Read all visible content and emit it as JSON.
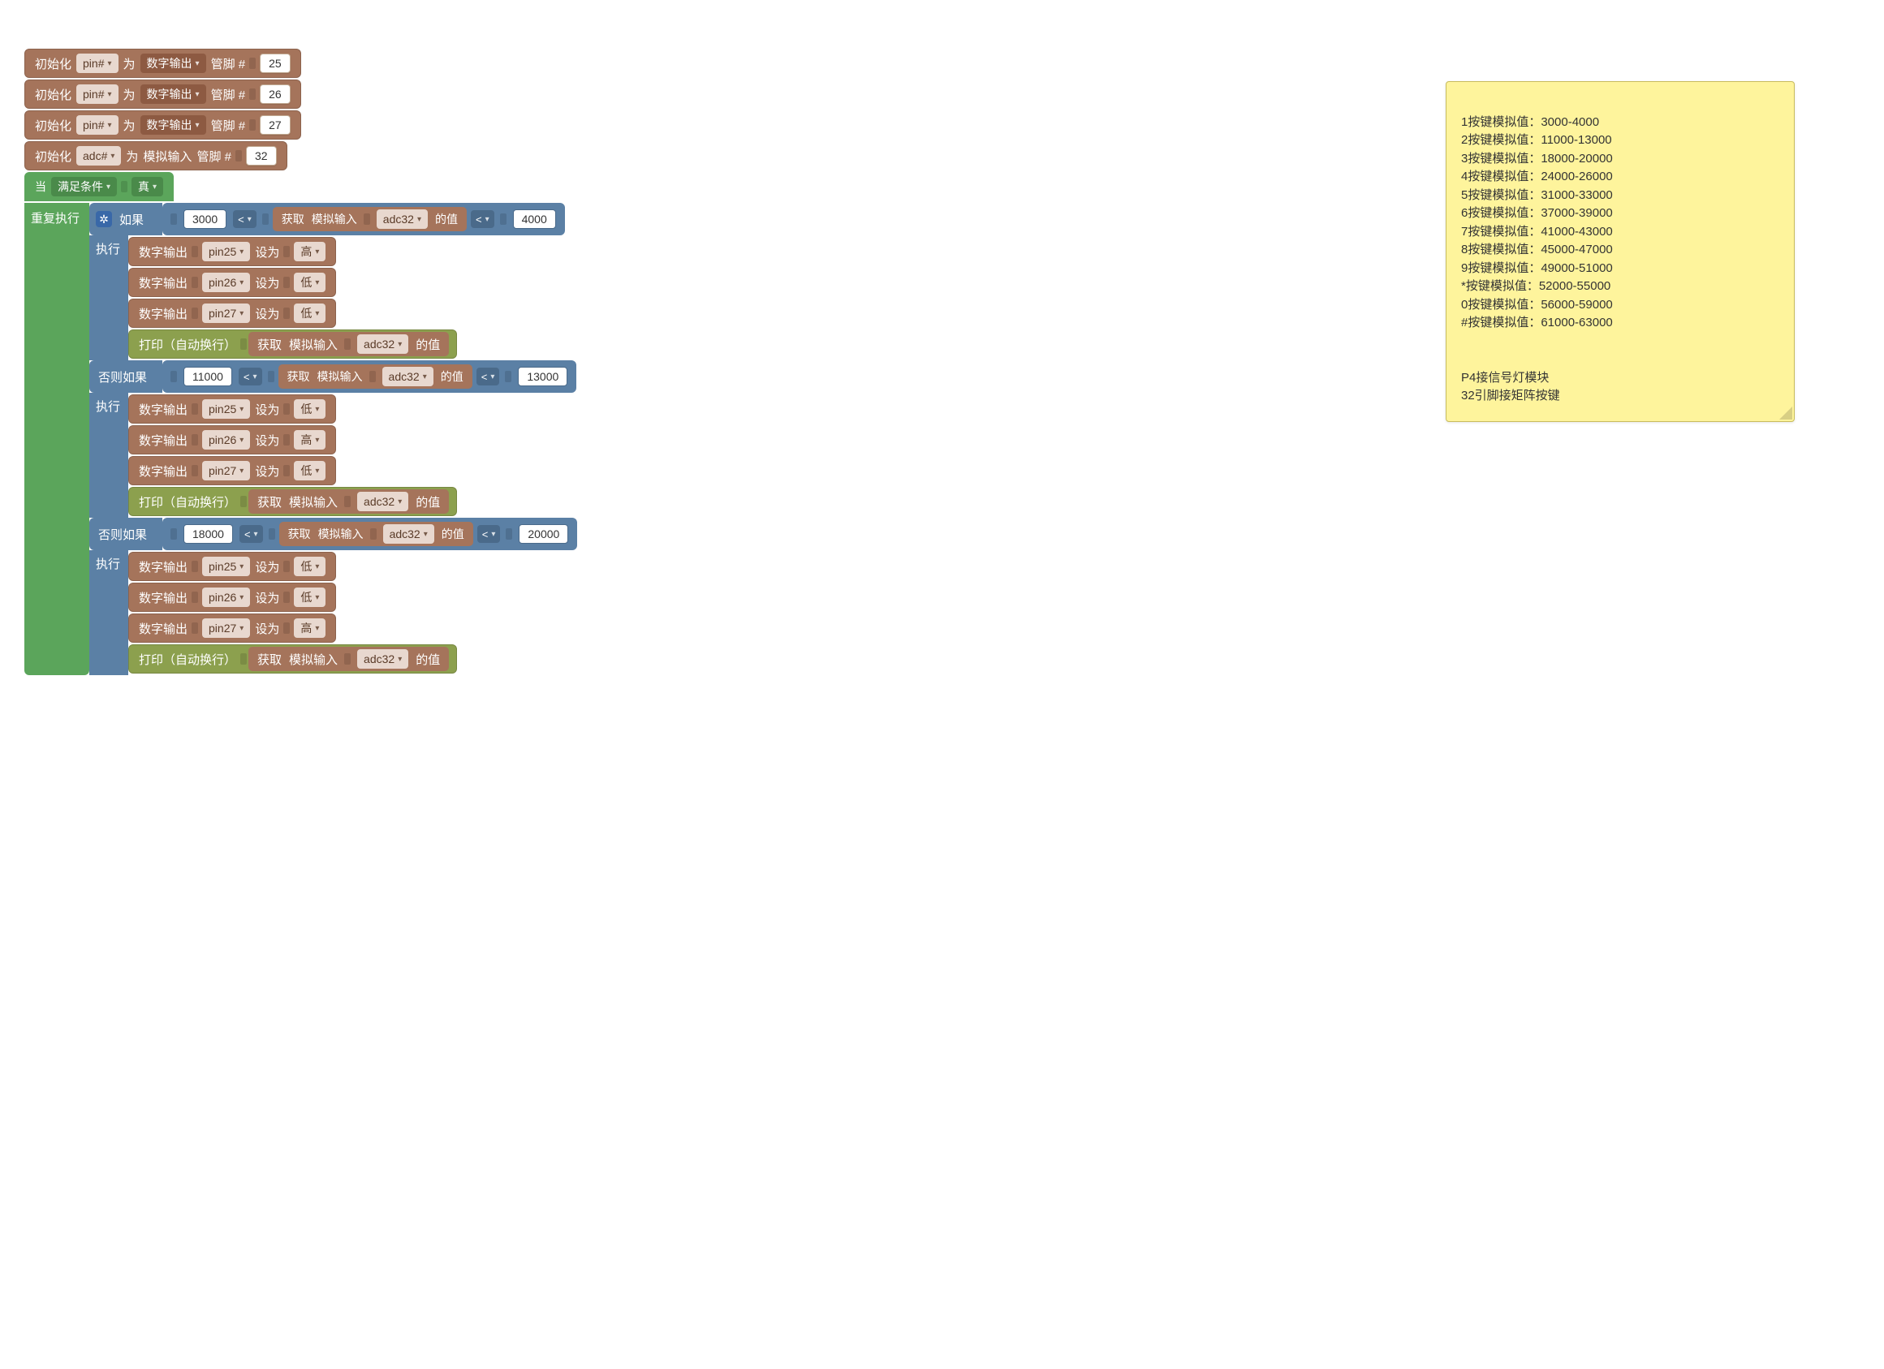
{
  "colors": {
    "brown": "#a5745b",
    "brown_dark": "#8d5a42",
    "green": "#5ba55b",
    "olive": "#8ca04e",
    "blue": "#5b80a5",
    "note_bg": "#fef49c",
    "note_border": "#c8bc5e"
  },
  "labels": {
    "init": "初始化",
    "as": "为",
    "digital_out": "数字输出",
    "analog_in": "模拟输入",
    "pin_hash": "管脚 #",
    "when": "当",
    "cond_met": "满足条件",
    "true": "真",
    "repeat": "重复执行",
    "if": "如果",
    "elseif": "否则如果",
    "exec": "执行",
    "set_to": "设为",
    "high": "高",
    "low": "低",
    "print_wrap": "打印（自动换行）",
    "get": "获取",
    "of_value": "的值",
    "lt": "<"
  },
  "pins": {
    "pin_field": "pin#",
    "adc_field": "adc#",
    "p25": "25",
    "p26": "26",
    "p27": "27",
    "p32": "32",
    "pin25": "pin25",
    "pin26": "pin26",
    "pin27": "pin27",
    "adc32": "adc32"
  },
  "branches": [
    {
      "low": "3000",
      "high": "4000",
      "states": [
        "高",
        "低",
        "低"
      ]
    },
    {
      "low": "11000",
      "high": "13000",
      "states": [
        "低",
        "高",
        "低"
      ]
    },
    {
      "low": "18000",
      "high": "20000",
      "states": [
        "低",
        "低",
        "高"
      ]
    }
  ],
  "note": {
    "lines": [
      "1按键模拟值：3000-4000",
      "2按键模拟值：11000-13000",
      "3按键模拟值：18000-20000",
      "4按键模拟值：24000-26000",
      "5按键模拟值：31000-33000",
      "6按键模拟值：37000-39000",
      "7按键模拟值：41000-43000",
      "8按键模拟值：45000-47000",
      "9按键模拟值：49000-51000",
      "*按键模拟值：52000-55000",
      "0按键模拟值：56000-59000",
      "#按键模拟值：61000-63000",
      "",
      "",
      "P4接信号灯模块",
      "32引脚接矩阵按键"
    ]
  }
}
